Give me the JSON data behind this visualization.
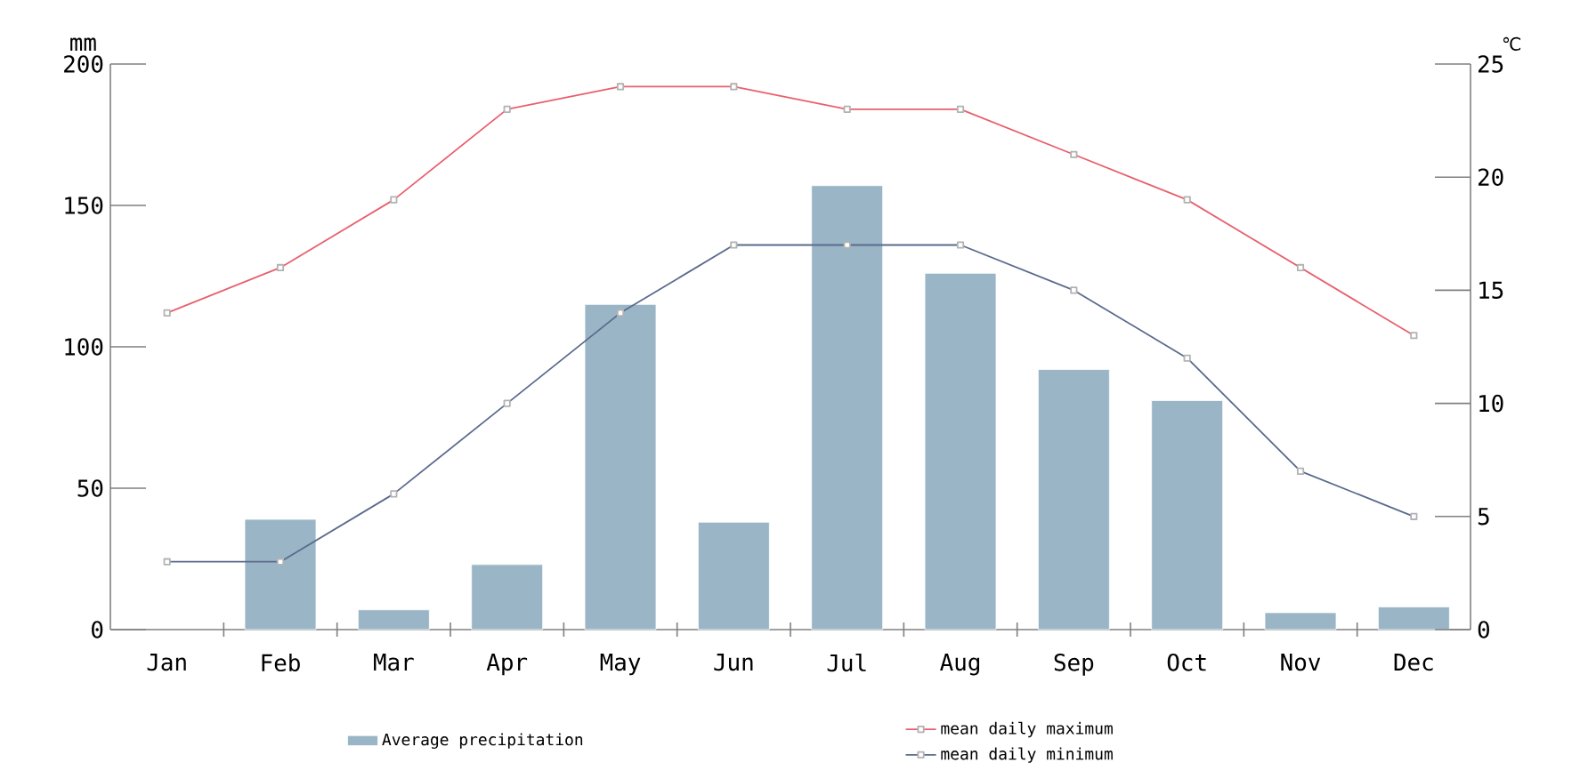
{
  "chart_data": {
    "type": "bar",
    "ylabel": "mm",
    "y2label": "℃",
    "categories": [
      "Jan",
      "Feb",
      "Mar",
      "Apr",
      "May",
      "Jun",
      "Jul",
      "Aug",
      "Sep",
      "Oct",
      "Nov",
      "Dec"
    ],
    "series": [
      {
        "name": "Average precipitation",
        "color": "#9ab6c6",
        "values": [
          null,
          39,
          7,
          23,
          115,
          38,
          157,
          126,
          92,
          81,
          6,
          8
        ]
      },
      {
        "name": "mean daily maximum",
        "type": "line",
        "axis": "y2",
        "color": "#e8606e",
        "values": [
          14,
          16,
          19,
          23,
          24,
          24,
          23,
          23,
          21,
          19,
          16,
          13
        ]
      },
      {
        "name": "mean daily minimum",
        "type": "line",
        "axis": "y2",
        "color": "#5a6a8c",
        "values": [
          3,
          3,
          6,
          10,
          14,
          17,
          17,
          17,
          15,
          12,
          7,
          5
        ]
      }
    ],
    "ylim": [
      0,
      200
    ],
    "yticks": [
      0,
      50,
      100,
      150,
      200
    ],
    "y2lim": [
      0,
      25
    ],
    "y2ticks": [
      0,
      5,
      10,
      15,
      20,
      25
    ],
    "marker": "square",
    "line_style": "solid",
    "legend": "bottom",
    "grid": false
  }
}
